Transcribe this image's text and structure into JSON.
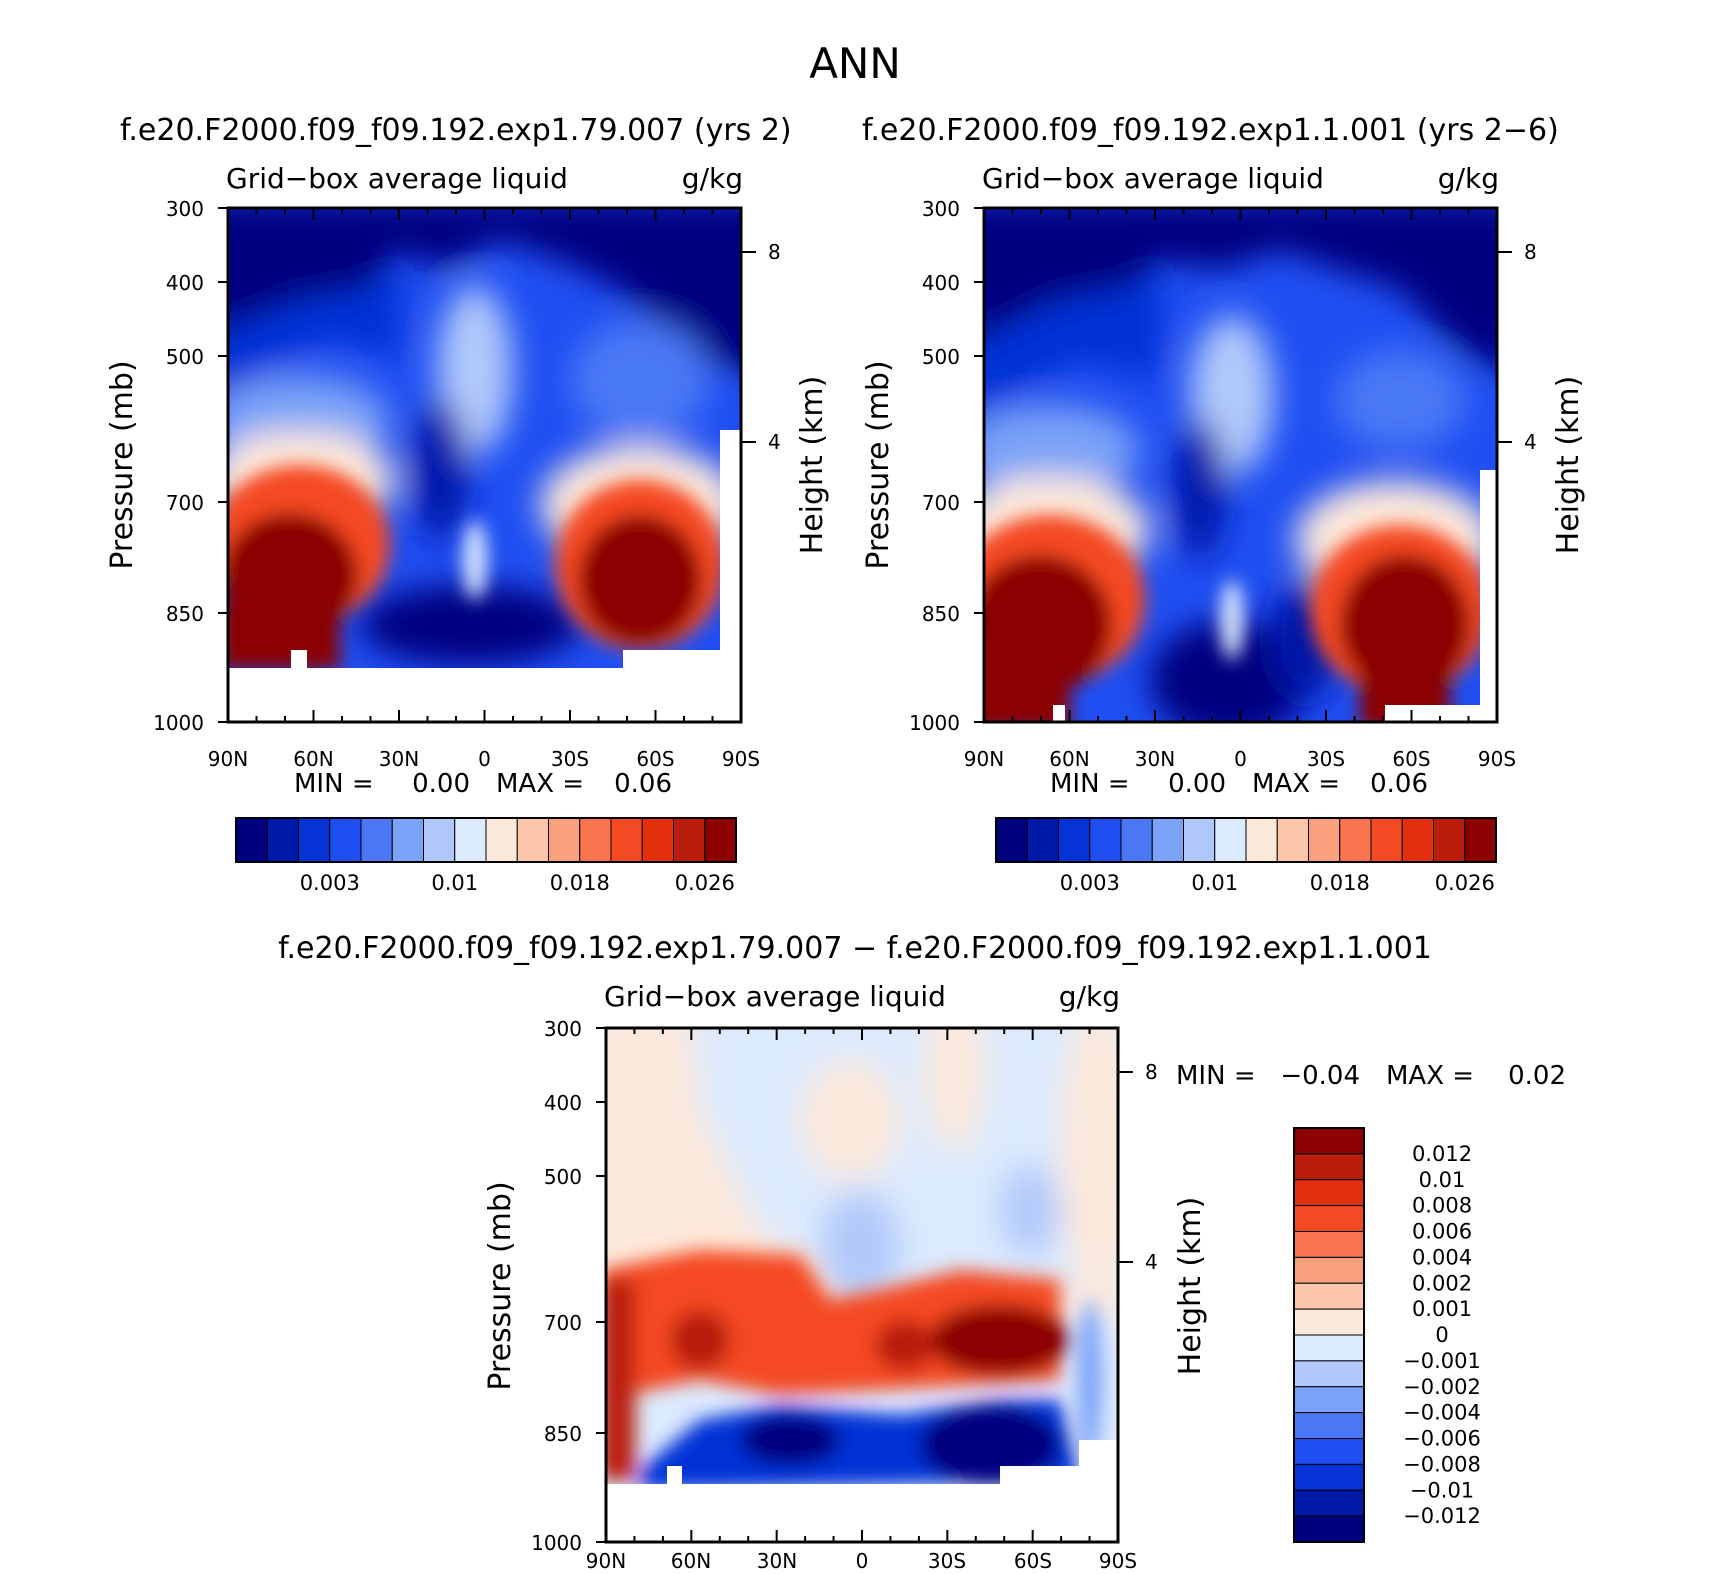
{
  "page_title": "ANN",
  "colors": {
    "base_scale": [
      "#00007f",
      "#0019a8",
      "#0633d6",
      "#1f4ff2",
      "#4a78f5",
      "#7aa2f7",
      "#b1c9fa",
      "#dceafe",
      "#fde9db",
      "#fcc6ab",
      "#fba07c",
      "#f9744f",
      "#f44a23",
      "#e22f0e",
      "#b91e0c",
      "#8b0000"
    ],
    "diff_scale": [
      "#00007f",
      "#0019a8",
      "#0633d6",
      "#1f4ff2",
      "#4a78f5",
      "#7aa2f7",
      "#b1c9fa",
      "#dceafe",
      "#fde9db",
      "#fcc6ab",
      "#fba07c",
      "#f9744f",
      "#f44a23",
      "#e22f0e",
      "#b91e0c",
      "#8b0000"
    ]
  },
  "chart_data": [
    {
      "type": "contour",
      "case_title": "f.e20.F2000.f09_f09.192.exp1.79.007 (yrs 2)",
      "variable": "Grid−box average liquid",
      "units": "g/kg",
      "ylabel": "Pressure (mb)",
      "y2label": "Height (km)",
      "x_ticks": [
        "90N",
        "60N",
        "30N",
        "0",
        "30S",
        "60S",
        "90S"
      ],
      "y_ticks": [
        "300",
        "400",
        "500",
        "700",
        "850",
        "1000"
      ],
      "y2_ticks": [
        "8",
        "4"
      ],
      "min_label": "MIN =",
      "min_value": "0.00",
      "max_label": "MAX =",
      "max_value": "0.06",
      "colorbar_labels": [
        "0.003",
        "0.01",
        "0.018",
        "0.026"
      ],
      "features": [
        {
          "name": "NH low-level maximum",
          "lat": 60,
          "pressure": 800,
          "value": 0.03
        },
        {
          "name": "SH low-level maximum",
          "lat": -50,
          "pressure": 800,
          "value": 0.03
        },
        {
          "name": "Tropical minimum",
          "lat": 10,
          "pressure": 870,
          "value": 0.001
        }
      ]
    },
    {
      "type": "contour",
      "case_title": "f.e20.F2000.f09_f09.192.exp1.1.001 (yrs 2−6)",
      "variable": "Grid−box average liquid",
      "units": "g/kg",
      "ylabel": "Pressure (mb)",
      "y2label": "Height (km)",
      "x_ticks": [
        "90N",
        "60N",
        "30N",
        "0",
        "30S",
        "60S",
        "90S"
      ],
      "y_ticks": [
        "300",
        "400",
        "500",
        "700",
        "850",
        "1000"
      ],
      "y2_ticks": [
        "8",
        "4"
      ],
      "min_label": "MIN =",
      "min_value": "0.00",
      "max_label": "MAX =",
      "max_value": "0.06",
      "colorbar_labels": [
        "0.003",
        "0.01",
        "0.018",
        "0.026"
      ],
      "features": [
        {
          "name": "NH low-level maximum",
          "lat": 55,
          "pressure": 850,
          "value": 0.03
        },
        {
          "name": "SH low-level maximum",
          "lat": -50,
          "pressure": 850,
          "value": 0.03
        },
        {
          "name": "Tropical minimum",
          "lat": 5,
          "pressure": 940,
          "value": 0.001
        }
      ]
    },
    {
      "type": "contour",
      "case_title": "f.e20.F2000.f09_f09.192.exp1.79.007 − f.e20.F2000.f09_f09.192.exp1.1.001",
      "variable": "Grid−box average liquid",
      "units": "g/kg",
      "ylabel": "Pressure (mb)",
      "y2label": "Height (km)",
      "x_ticks": [
        "90N",
        "60N",
        "30N",
        "0",
        "30S",
        "60S",
        "90S"
      ],
      "y_ticks": [
        "300",
        "400",
        "500",
        "700",
        "850",
        "1000"
      ],
      "y2_ticks": [
        "8",
        "4"
      ],
      "min_label": "MIN =",
      "min_value": "−0.04",
      "max_label": "MAX =",
      "max_value": "0.02",
      "colorbar_labels": [
        "0.012",
        "0.01",
        "0.008",
        "0.006",
        "0.004",
        "0.002",
        "0.001",
        "0",
        "−0.001",
        "−0.002",
        "−0.004",
        "−0.006",
        "−0.008",
        "−0.01",
        "−0.012"
      ],
      "features": [
        {
          "name": "NH positive band",
          "lat": 60,
          "pressure": 750,
          "value": 0.012
        },
        {
          "name": "SH positive maximum",
          "lat": -45,
          "pressure": 750,
          "value": 0.012
        },
        {
          "name": "Negative band below",
          "lat": -40,
          "pressure": 870,
          "value": -0.012
        }
      ]
    }
  ]
}
